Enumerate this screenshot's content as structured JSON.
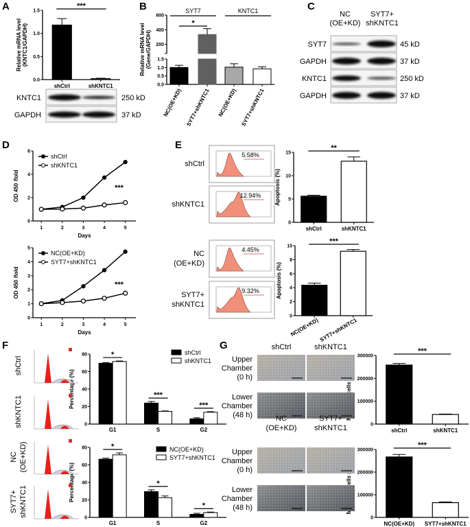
{
  "panel_labels": [
    "A",
    "B",
    "C",
    "D",
    "E",
    "F",
    "G"
  ],
  "blot_A": {
    "rows": [
      {
        "label": "KNTC1",
        "size": "250 kD"
      },
      {
        "label": "GAPDH",
        "size": "37 kD"
      }
    ]
  },
  "blot_C": {
    "columns": [
      [
        "NC",
        "(OE+KD)"
      ],
      [
        "SYT7+",
        "shKNTC1"
      ]
    ],
    "rows": [
      {
        "label": "SYT7",
        "size": "45 kD"
      },
      {
        "label": "GAPDH",
        "size": "37 kD"
      },
      {
        "label": "KNTC1",
        "size": "250 kD"
      },
      {
        "label": "GAPDH",
        "size": "37 kD"
      }
    ]
  },
  "flow_E": {
    "rows": [
      {
        "label": [
          "shCtrl"
        ],
        "percent": "5.58%"
      },
      {
        "label": [
          "shKNTC1"
        ],
        "percent": "12.94%"
      },
      {
        "label": [
          "NC",
          "(OE+KD)"
        ],
        "percent": "4.45%"
      },
      {
        "label": [
          "SYT7+",
          "shKNTC1"
        ],
        "percent": "9.32%"
      }
    ],
    "fill": "#f0907a"
  },
  "cellcycle_F": {
    "rows": [
      [
        "shCtrl"
      ],
      [
        "shKNTC1"
      ],
      [
        "NC",
        "(OE+KD)"
      ],
      [
        "SYT7+",
        "shKNTC1"
      ]
    ],
    "fill": "#e8201a"
  },
  "transwell_G": {
    "top_columns": [
      [
        "shCtrl"
      ],
      [
        "shKNTC1"
      ]
    ],
    "bottom_columns": [
      [
        "NC",
        "(OE+KD)"
      ],
      [
        "SYT7+",
        "shKNTC1"
      ]
    ],
    "rows": [
      [
        "Upper",
        "Chamber",
        "(0 h)"
      ],
      [
        "Lower",
        "Chamber",
        "(48 h)"
      ]
    ]
  },
  "chart_data": [
    {
      "id": "A",
      "type": "bar",
      "ylabel": [
        "Relative mRNA level",
        "(KNTC1/GAPDH)"
      ],
      "categories": [
        "shCtrl",
        "shKNTC1"
      ],
      "series": [
        {
          "name": "KNTC1",
          "values": [
            1.18,
            0.02
          ],
          "errors": [
            0.14,
            0.01
          ]
        }
      ],
      "bar_colors": [
        "#000000",
        "#ffffff"
      ],
      "ylim": [
        0,
        1.5
      ],
      "yticks": [
        0,
        0.5,
        1,
        1.5
      ],
      "significance": [
        {
          "from": 0,
          "to": 1,
          "label": "***"
        }
      ]
    },
    {
      "id": "B",
      "type": "bar",
      "ylabel": [
        "Relative mRNA level",
        "(Gene/GAPDH)"
      ],
      "broken_axis": true,
      "categories": [
        "NC(OE+KD)",
        "SYT7+shKNTC1",
        "NC(OE+KD)",
        "SYT7+shKNTC1"
      ],
      "groups": [
        {
          "label": "SYT7",
          "from": 0,
          "to": 1
        },
        {
          "label": "KNTC1",
          "from": 2,
          "to": 3
        }
      ],
      "series": [
        {
          "name": "mRNA",
          "values": [
            1.0,
            335,
            1.02,
            0.92
          ],
          "errors": [
            0.13,
            80,
            0.2,
            0.12
          ]
        }
      ],
      "bar_colors": [
        "#000000",
        "#606060",
        "#a8a8a8",
        "#ffffff"
      ],
      "ylim_lower": [
        0,
        1.5
      ],
      "yticks_lower": [
        0,
        0.5,
        1,
        1.5
      ],
      "ylim_upper": [
        75,
        600
      ],
      "yticks_upper": [
        200,
        400,
        600
      ],
      "significance": [
        {
          "from": 0,
          "to": 1,
          "label": "*"
        }
      ]
    },
    {
      "id": "D1",
      "type": "line",
      "xlabel": "Days",
      "ylabel": "OD 450 /fold",
      "x": [
        1,
        2,
        3,
        4,
        5
      ],
      "xlim": [
        0.6,
        5.5
      ],
      "ylim": [
        0,
        6
      ],
      "yticks": [
        0,
        2,
        4,
        6
      ],
      "series": [
        {
          "name": "shCtrl",
          "values": [
            1,
            1.2,
            2,
            3.72,
            5.05
          ],
          "marker": "filled"
        },
        {
          "name": "shKNTC1",
          "values": [
            1,
            1.02,
            1.1,
            1.37,
            1.57
          ],
          "marker": "open"
        }
      ],
      "annotation": "***",
      "legend": "top-left"
    },
    {
      "id": "D2",
      "type": "line",
      "xlabel": "Days",
      "ylabel": "OD 450 /fold",
      "x": [
        1,
        2,
        3,
        4,
        5
      ],
      "xlim": [
        0.6,
        5.5
      ],
      "ylim": [
        0,
        5
      ],
      "yticks": [
        0,
        1,
        2,
        3,
        4,
        5
      ],
      "series": [
        {
          "name": "NC(OE+KD)",
          "values": [
            1,
            1.24,
            2.25,
            3.4,
            4.72
          ],
          "marker": "filled"
        },
        {
          "name": "SYT7+shKNTC1",
          "values": [
            1,
            1.08,
            1.19,
            1.39,
            1.75
          ],
          "marker": "open"
        }
      ],
      "annotation": "***",
      "legend": "top-left"
    },
    {
      "id": "E1",
      "type": "bar",
      "ylabel": [
        "Apoptosis (%)"
      ],
      "categories": [
        "shCtrl",
        "shKNTC1"
      ],
      "series": [
        {
          "name": "Apoptosis",
          "values": [
            5.6,
            13.1
          ],
          "errors": [
            0.2,
            0.9
          ]
        }
      ],
      "bar_colors": [
        "#000000",
        "#ffffff"
      ],
      "ylim": [
        0,
        15
      ],
      "yticks": [
        0,
        5,
        10,
        15
      ],
      "significance": [
        {
          "from": 0,
          "to": 1,
          "label": "**"
        }
      ]
    },
    {
      "id": "E2",
      "type": "bar",
      "ylabel": [
        "Apoptosis (%)"
      ],
      "categories": [
        "NC(OE+KD)",
        "SYT7+shKNTC1"
      ],
      "series": [
        {
          "name": "Apoptosis",
          "values": [
            4.35,
            9.2
          ],
          "errors": [
            0.3,
            0.25
          ]
        }
      ],
      "bar_colors": [
        "#000000",
        "#ffffff"
      ],
      "ylim": [
        0,
        10
      ],
      "yticks": [
        0,
        2,
        4,
        6,
        8,
        10
      ],
      "significance": [
        {
          "from": 0,
          "to": 1,
          "label": "***"
        }
      ]
    },
    {
      "id": "F1",
      "type": "bar",
      "ylabel": [
        "Percentage (%)"
      ],
      "categories": [
        "G1",
        "S",
        "G2"
      ],
      "series": [
        {
          "name": "shCtrl",
          "values": [
            69.5,
            24,
            6
          ],
          "errors": [
            0.8,
            1.8,
            1.2
          ],
          "color": "#000000"
        },
        {
          "name": "shKNTC1",
          "values": [
            71.5,
            14.5,
            13.5
          ],
          "errors": [
            0.6,
            0.5,
            0.7
          ],
          "color": "#ffffff"
        }
      ],
      "ylim": [
        0,
        80
      ],
      "yticks": [
        0,
        20,
        40,
        60,
        80
      ],
      "group_significance": [
        "*",
        "***",
        "***"
      ],
      "legend": "top-right"
    },
    {
      "id": "F2",
      "type": "bar",
      "ylabel": [
        "Percentage (%)"
      ],
      "categories": [
        "G1",
        "S",
        "G2"
      ],
      "series": [
        {
          "name": "NC(OE+KD)",
          "values": [
            66.5,
            29.5,
            3.5
          ],
          "errors": [
            1.2,
            2,
            1.2
          ],
          "color": "#000000"
        },
        {
          "name": "SYT7+shKNTC1",
          "values": [
            71.5,
            22.5,
            5.5
          ],
          "errors": [
            2.2,
            2,
            0.6
          ],
          "color": "#ffffff"
        }
      ],
      "ylim": [
        0,
        80
      ],
      "yticks": [
        0,
        20,
        40,
        60,
        80
      ],
      "group_significance": [
        "*",
        "*",
        "*"
      ],
      "legend": "top-right"
    },
    {
      "id": "G1",
      "type": "bar",
      "ylabel": [
        "Migratory cells per field"
      ],
      "categories": [
        "shCtrl",
        "shKNTC1"
      ],
      "series": [
        {
          "name": "Migratory cells",
          "values": [
            258000,
            42000
          ],
          "errors": [
            7000,
            2000
          ]
        }
      ],
      "bar_colors": [
        "#000000",
        "#ffffff"
      ],
      "ylim": [
        0,
        300000
      ],
      "yticks": [
        0,
        100000,
        200000,
        300000
      ],
      "significance": [
        {
          "from": 0,
          "to": 1,
          "label": "***"
        }
      ]
    },
    {
      "id": "G2",
      "type": "bar",
      "ylabel": [
        "Migratory cells per field"
      ],
      "categories": [
        "NC(OE+KD)",
        "SYT7+shKNTC1"
      ],
      "series": [
        {
          "name": "Migratory cells",
          "values": [
            267000,
            65000
          ],
          "errors": [
            11000,
            3000
          ]
        }
      ],
      "bar_colors": [
        "#000000",
        "#ffffff"
      ],
      "ylim": [
        0,
        300000
      ],
      "yticks": [
        0,
        100000,
        200000,
        300000
      ],
      "significance": [
        {
          "from": 0,
          "to": 1,
          "label": "***"
        }
      ]
    }
  ]
}
